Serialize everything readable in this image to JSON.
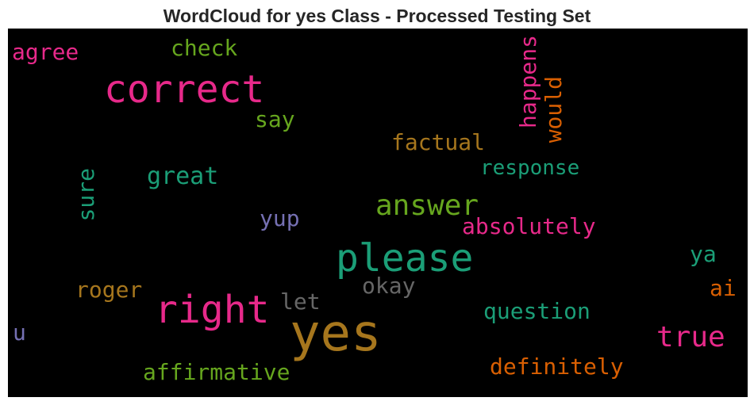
{
  "title": "WordCloud for yes Class - Processed Testing Set",
  "colors": {
    "background": "#000000",
    "title_text": "#262626"
  },
  "words": [
    {
      "text": "yes",
      "color": "#a6761d",
      "orientation": "horizontal"
    },
    {
      "text": "please",
      "color": "#1b9e77",
      "orientation": "horizontal"
    },
    {
      "text": "right",
      "color": "#e7298a",
      "orientation": "horizontal"
    },
    {
      "text": "correct",
      "color": "#e7298a",
      "orientation": "horizontal"
    },
    {
      "text": "answer",
      "color": "#66a61e",
      "orientation": "horizontal"
    },
    {
      "text": "true",
      "color": "#e7298a",
      "orientation": "horizontal"
    },
    {
      "text": "absolutely",
      "color": "#e7298a",
      "orientation": "horizontal"
    },
    {
      "text": "response",
      "color": "#1b9e77",
      "orientation": "horizontal"
    },
    {
      "text": "factual",
      "color": "#a6761d",
      "orientation": "horizontal"
    },
    {
      "text": "great",
      "color": "#1b9e77",
      "orientation": "horizontal"
    },
    {
      "text": "say",
      "color": "#66a61e",
      "orientation": "horizontal"
    },
    {
      "text": "check",
      "color": "#66a61e",
      "orientation": "horizontal"
    },
    {
      "text": "agree",
      "color": "#e7298a",
      "orientation": "horizontal"
    },
    {
      "text": "happens",
      "color": "#e7298a",
      "orientation": "vertical"
    },
    {
      "text": "would",
      "color": "#d95f02",
      "orientation": "vertical"
    },
    {
      "text": "sure",
      "color": "#1b9e77",
      "orientation": "vertical"
    },
    {
      "text": "yup",
      "color": "#7570b3",
      "orientation": "horizontal"
    },
    {
      "text": "ya",
      "color": "#1b9e77",
      "orientation": "horizontal"
    },
    {
      "text": "okay",
      "color": "#666666",
      "orientation": "horizontal"
    },
    {
      "text": "roger",
      "color": "#a6761d",
      "orientation": "horizontal"
    },
    {
      "text": "let",
      "color": "#666666",
      "orientation": "horizontal"
    },
    {
      "text": "question",
      "color": "#1b9e77",
      "orientation": "horizontal"
    },
    {
      "text": "ai",
      "color": "#d95f02",
      "orientation": "horizontal"
    },
    {
      "text": "u",
      "color": "#7570b3",
      "orientation": "horizontal"
    },
    {
      "text": "definitely",
      "color": "#d95f02",
      "orientation": "horizontal"
    },
    {
      "text": "affirmative",
      "color": "#66a61e",
      "orientation": "horizontal"
    }
  ]
}
